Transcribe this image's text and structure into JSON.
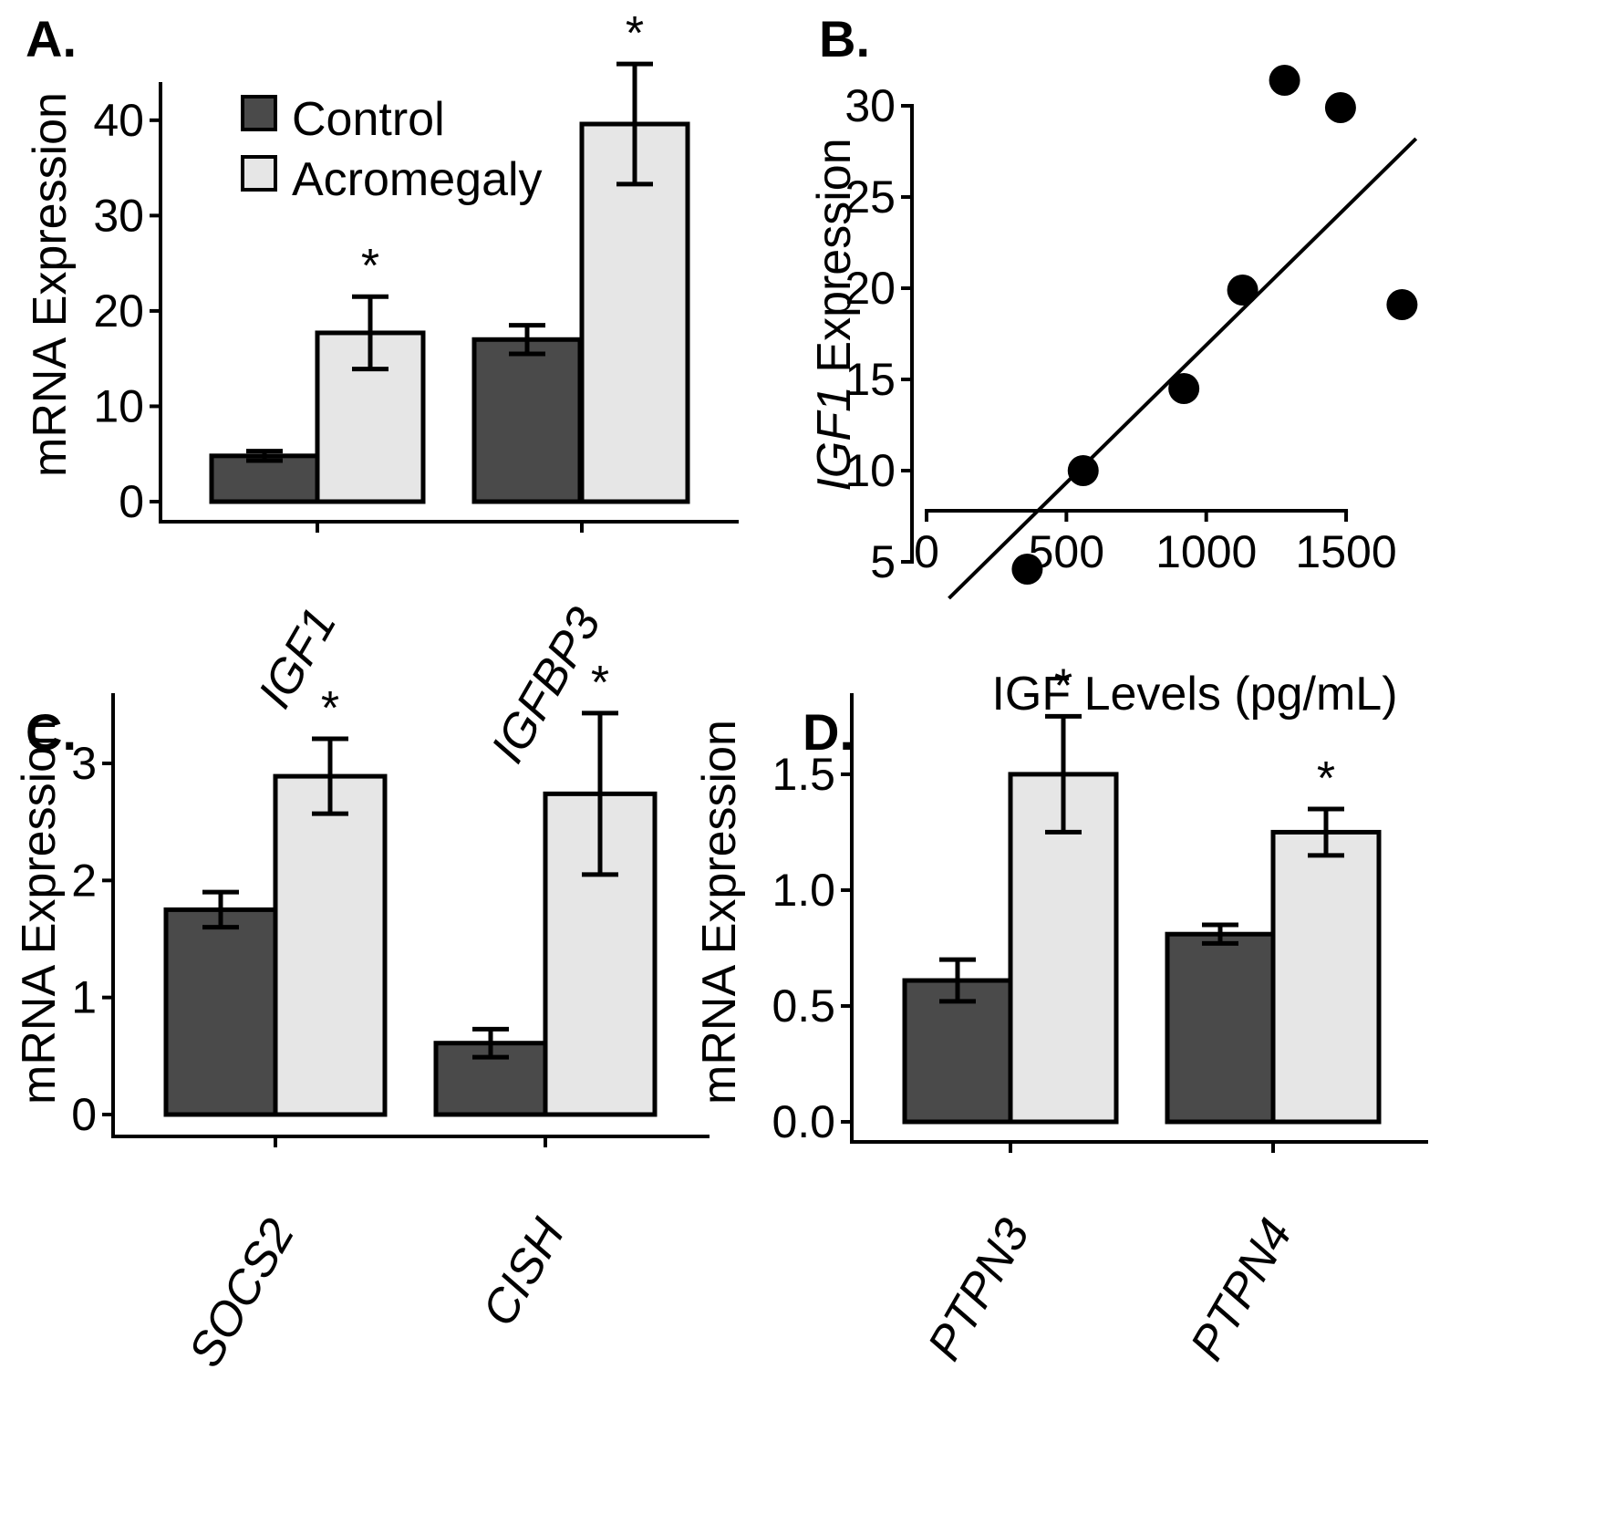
{
  "colors": {
    "control": "#4a4a4a",
    "acromegaly": "#e6e6e6",
    "ink": "#000000"
  },
  "legend": {
    "items": [
      "Control",
      "Acromegaly"
    ],
    "placement": "top-left of panel A"
  },
  "chart_data": [
    {
      "id": "A",
      "panel_label": "A.",
      "type": "bar",
      "ylabel": "mRNA Expression",
      "ylim": [
        0,
        44
      ],
      "yticks": [
        0,
        10,
        20,
        30,
        40
      ],
      "ytick_labels": [
        "0",
        "10",
        "20",
        "30",
        "40"
      ],
      "categories": [
        "IGF1",
        "IGFBP3"
      ],
      "series": [
        {
          "name": "Control",
          "values": [
            4.8,
            17.0
          ],
          "errors": [
            0.5,
            1.5
          ]
        },
        {
          "name": "Acromegaly",
          "values": [
            17.7,
            39.6
          ],
          "errors": [
            3.8,
            6.3
          ]
        }
      ],
      "significance": [
        [
          "",
          "*"
        ],
        [
          "",
          "*"
        ]
      ],
      "grid": false
    },
    {
      "id": "B",
      "panel_label": "B.",
      "type": "scatter",
      "xlabel": "IGF Levels (pg/mL)",
      "ylabel_italic": "IGF1",
      "ylabel_rest": " Expression",
      "xlim": [
        0,
        1700
      ],
      "ylim": [
        3,
        32
      ],
      "xticks": [
        0,
        500,
        1000,
        1500
      ],
      "xtick_labels": [
        "0",
        "500",
        "1000",
        "1500"
      ],
      "yticks": [
        5,
        10,
        15,
        20,
        25,
        30
      ],
      "ytick_labels": [
        "5",
        "10",
        "15",
        "20",
        "25",
        "30"
      ],
      "points": [
        {
          "x": 360,
          "y": 4.6
        },
        {
          "x": 560,
          "y": 10.0
        },
        {
          "x": 920,
          "y": 14.5
        },
        {
          "x": 1130,
          "y": 19.9
        },
        {
          "x": 1280,
          "y": 31.4
        },
        {
          "x": 1480,
          "y": 29.9
        },
        {
          "x": 1700,
          "y": 19.1
        }
      ],
      "fit_line": {
        "x": [
          80,
          1750
        ],
        "y": [
          3.0,
          28.2
        ]
      },
      "grid": false
    },
    {
      "id": "C",
      "panel_label": "C.",
      "type": "bar",
      "ylabel": "mRNA Expression",
      "ylim": [
        0,
        3.6
      ],
      "yticks": [
        0,
        1,
        2,
        3
      ],
      "ytick_labels": [
        "0",
        "1",
        "2",
        "3"
      ],
      "categories": [
        "SOCS2",
        "CISH"
      ],
      "series": [
        {
          "name": "Control",
          "values": [
            1.75,
            0.61
          ],
          "errors": [
            0.15,
            0.12
          ]
        },
        {
          "name": "Acromegaly",
          "values": [
            2.89,
            2.74
          ],
          "errors": [
            0.32,
            0.69
          ]
        }
      ],
      "significance": [
        [
          "",
          "*"
        ],
        [
          "",
          "*"
        ]
      ],
      "grid": false
    },
    {
      "id": "D",
      "panel_label": "D.",
      "type": "bar",
      "ylabel": "mRNA Expression",
      "ylim": [
        0,
        1.85
      ],
      "yticks": [
        0,
        0.5,
        1.0,
        1.5
      ],
      "ytick_labels": [
        "0.0",
        "0.5",
        "1.0",
        "1.5"
      ],
      "categories": [
        "PTPN3",
        "PTPN4"
      ],
      "series": [
        {
          "name": "Control",
          "values": [
            0.61,
            0.81
          ],
          "errors": [
            0.09,
            0.04
          ]
        },
        {
          "name": "Acromegaly",
          "values": [
            1.5,
            1.25
          ],
          "errors": [
            0.25,
            0.1
          ]
        }
      ],
      "significance": [
        [
          "",
          "*"
        ],
        [
          "",
          "*"
        ]
      ],
      "grid": false
    }
  ]
}
